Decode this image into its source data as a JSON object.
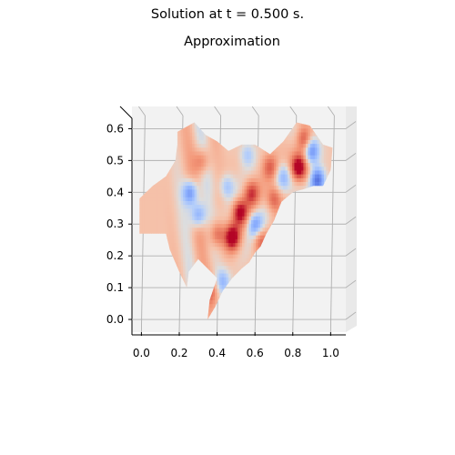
{
  "figure": {
    "suptitle": "Solution at t = 0.500 s.",
    "axes_title": "Approximation"
  },
  "chart_data": {
    "type": "heatmap",
    "title": "Approximation",
    "projection": "3d-surface-top-view",
    "colormap": "coolwarm",
    "colors": {
      "pane": "#f2f2f2",
      "grid": "#b0b0b0",
      "low": "#3b4cc0",
      "mid": "#dddddd",
      "high": "#b40426"
    },
    "xlim": [
      -0.05,
      1.08
    ],
    "ylim": [
      -0.04,
      0.67
    ],
    "x_ticks": [
      0.0,
      0.2,
      0.4,
      0.6,
      0.8,
      1.0
    ],
    "x_tick_labels": [
      "0.0",
      "0.2",
      "0.4",
      "0.6",
      "0.8",
      "1.0"
    ],
    "y_ticks": [
      0.0,
      0.1,
      0.2,
      0.3,
      0.4,
      0.5,
      0.6
    ],
    "y_tick_labels": [
      "0.0",
      "0.1",
      "0.2",
      "0.3",
      "0.4",
      "0.5",
      "0.6"
    ],
    "domain_outline": [
      [
        0.19,
        0.59
      ],
      [
        0.28,
        0.62
      ],
      [
        0.34,
        0.58
      ],
      [
        0.4,
        0.56
      ],
      [
        0.46,
        0.53
      ],
      [
        0.53,
        0.55
      ],
      [
        0.6,
        0.55
      ],
      [
        0.68,
        0.52
      ],
      [
        0.75,
        0.56
      ],
      [
        0.82,
        0.62
      ],
      [
        0.89,
        0.61
      ],
      [
        0.96,
        0.55
      ],
      [
        1.01,
        0.54
      ],
      [
        1.0,
        0.47
      ],
      [
        0.96,
        0.42
      ],
      [
        0.91,
        0.42
      ],
      [
        0.86,
        0.41
      ],
      [
        0.8,
        0.4
      ],
      [
        0.74,
        0.37
      ],
      [
        0.7,
        0.31
      ],
      [
        0.66,
        0.27
      ],
      [
        0.63,
        0.23
      ],
      [
        0.6,
        0.21
      ],
      [
        0.57,
        0.18
      ],
      [
        0.53,
        0.16
      ],
      [
        0.48,
        0.13
      ],
      [
        0.43,
        0.09
      ],
      [
        0.39,
        0.04
      ],
      [
        0.35,
        0.0
      ],
      [
        0.36,
        0.06
      ],
      [
        0.4,
        0.13
      ],
      [
        0.35,
        0.16
      ],
      [
        0.3,
        0.19
      ],
      [
        0.25,
        0.15
      ],
      [
        0.24,
        0.1
      ],
      [
        0.2,
        0.15
      ],
      [
        0.15,
        0.22
      ],
      [
        0.13,
        0.27
      ],
      [
        -0.01,
        0.27
      ],
      [
        -0.01,
        0.38
      ],
      [
        0.06,
        0.42
      ],
      [
        0.13,
        0.45
      ],
      [
        0.18,
        0.5
      ],
      [
        0.19,
        0.55
      ]
    ],
    "hotspots": [
      {
        "x": 0.48,
        "y": 0.26,
        "u": 0.95
      },
      {
        "x": 0.52,
        "y": 0.34,
        "u": 0.85
      },
      {
        "x": 0.4,
        "y": 0.27,
        "u": 0.55
      },
      {
        "x": 0.58,
        "y": 0.4,
        "u": 0.6
      },
      {
        "x": 0.83,
        "y": 0.48,
        "u": 0.9
      },
      {
        "x": 0.86,
        "y": 0.57,
        "u": 0.7
      },
      {
        "x": 0.7,
        "y": 0.38,
        "u": 0.6
      },
      {
        "x": 0.68,
        "y": 0.48,
        "u": 0.5
      },
      {
        "x": 0.32,
        "y": 0.5,
        "u": 0.45
      },
      {
        "x": 0.37,
        "y": 0.09,
        "u": 0.4
      },
      {
        "x": 0.63,
        "y": 0.25,
        "u": 0.5
      },
      {
        "x": 0.26,
        "y": 0.4,
        "u": -0.8
      },
      {
        "x": 0.3,
        "y": 0.33,
        "u": -0.7
      },
      {
        "x": 0.93,
        "y": 0.44,
        "u": -1.0
      },
      {
        "x": 0.9,
        "y": 0.53,
        "u": -0.7
      },
      {
        "x": 0.6,
        "y": 0.3,
        "u": -0.55
      },
      {
        "x": 0.45,
        "y": 0.42,
        "u": -0.45
      },
      {
        "x": 0.75,
        "y": 0.45,
        "u": -0.4
      },
      {
        "x": 0.56,
        "y": 0.52,
        "u": -0.35
      },
      {
        "x": 0.43,
        "y": 0.12,
        "u": -0.45
      }
    ]
  }
}
